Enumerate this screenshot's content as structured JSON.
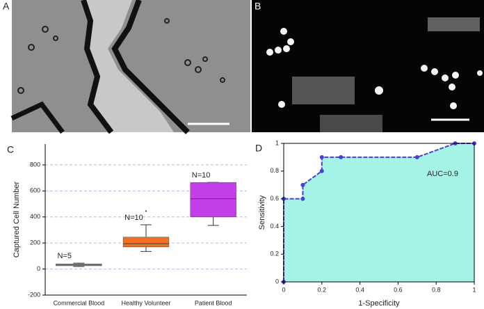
{
  "panel_labels": [
    "A",
    "B"
  ],
  "chart_data": [
    {
      "type": "box",
      "panel_label": "C",
      "y_label": "Captured Cell Number",
      "categories": [
        "Commercial Blood",
        "Healthy Volunteer",
        "Patient Blood"
      ],
      "boxes": [
        {
          "color": "#6fd3bd",
          "whisker_low": 20,
          "q1": 25,
          "median": 32,
          "q3": 40,
          "whisker_high": 45,
          "outliers": [],
          "annotation": "N=5"
        },
        {
          "color": "#f37021",
          "whisker_low": 135,
          "q1": 170,
          "median": 195,
          "q3": 245,
          "whisker_high": 340,
          "outliers": [
            445
          ],
          "annotation": "N=10"
        },
        {
          "color": "#c23fe8",
          "whisker_low": 335,
          "q1": 400,
          "median": 540,
          "q3": 665,
          "whisker_high": 665,
          "outliers": [],
          "annotation": "N=10"
        }
      ],
      "ylim": [
        -200,
        960
      ],
      "yticks": [
        -200,
        0,
        200,
        400,
        600,
        800
      ],
      "grid": true
    },
    {
      "type": "roc",
      "panel_label": "D",
      "x_label": "1-Specificity",
      "y_label": "Sensitivity",
      "annotation": "AUC=0.9",
      "x": [
        0,
        0,
        0.1,
        0.1,
        0.2,
        0.2,
        0.3,
        0.7,
        0.9,
        1
      ],
      "values": [
        0,
        0.6,
        0.6,
        0.7,
        0.8,
        0.9,
        0.9,
        0.9,
        1,
        1
      ],
      "color": "#4b3fd6",
      "fill_color": "#a4f3e6",
      "xlim": [
        0,
        1
      ],
      "ylim": [
        0,
        1
      ],
      "xticks": [
        0,
        0.2,
        0.4,
        0.6,
        0.8,
        1
      ],
      "yticks": [
        0,
        0.2,
        0.4,
        0.6,
        0.8,
        1
      ]
    }
  ]
}
